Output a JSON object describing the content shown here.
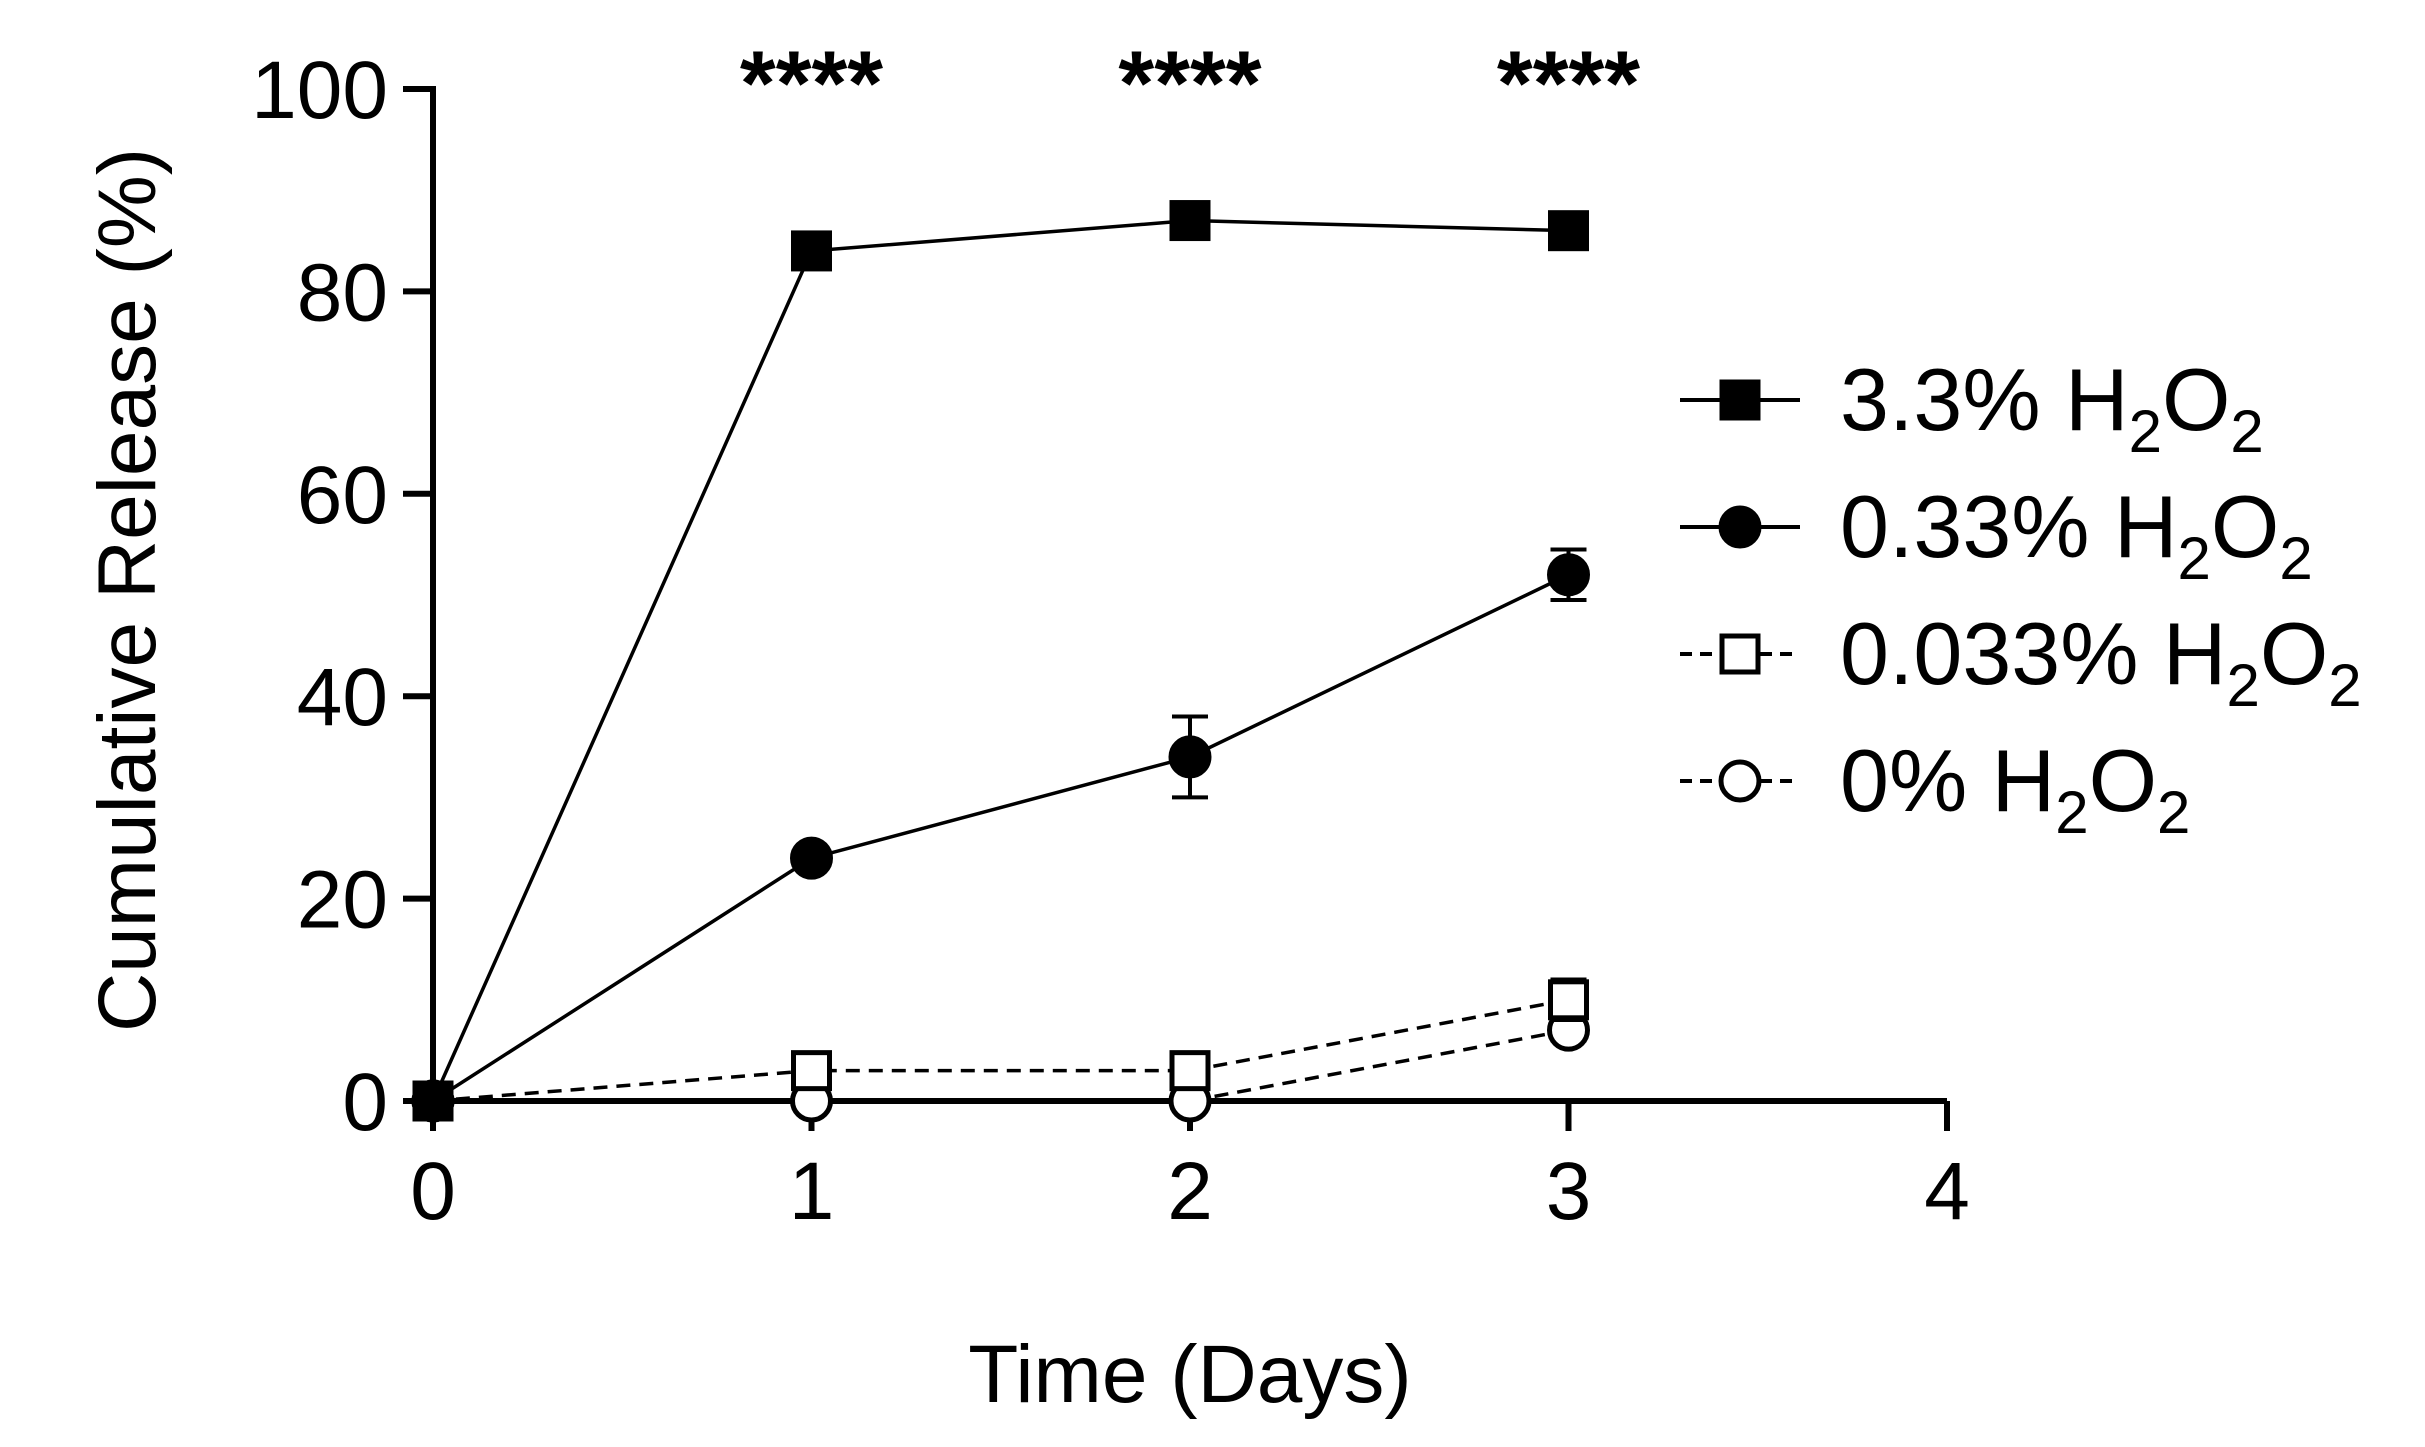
{
  "chart_data": {
    "type": "line",
    "xlabel": "Time (Days)",
    "ylabel": "Cumulative Release (%)",
    "xlim": [
      0,
      4
    ],
    "ylim": [
      0,
      100
    ],
    "xticks": [
      "0",
      "1",
      "2",
      "3",
      "4"
    ],
    "yticks": [
      "0",
      "20",
      "40",
      "60",
      "80",
      "100"
    ],
    "grid": false,
    "legend_position": "right",
    "significance": [
      {
        "x": 1,
        "label": "****"
      },
      {
        "x": 2,
        "label": "****"
      },
      {
        "x": 3,
        "label": "****"
      }
    ],
    "series": [
      {
        "name": "3.3% H2O2",
        "label_prefix": "3.3% ",
        "marker": "square-filled",
        "line": "solid",
        "x": [
          0,
          1,
          2,
          3
        ],
        "y": [
          0,
          84,
          87,
          86
        ],
        "err": [
          0,
          0,
          0,
          0
        ]
      },
      {
        "name": "0.33% H2O2",
        "label_prefix": "0.33% ",
        "marker": "circle-filled",
        "line": "solid",
        "x": [
          0,
          1,
          2,
          3
        ],
        "y": [
          0,
          24,
          34,
          52
        ],
        "err": [
          0,
          0,
          4,
          2.5
        ]
      },
      {
        "name": "0.033% H2O2",
        "label_prefix": "0.033% ",
        "marker": "square-open",
        "line": "dashed",
        "x": [
          0,
          1,
          2,
          3
        ],
        "y": [
          0,
          3,
          3,
          10
        ],
        "err": [
          0,
          0.8,
          0.5,
          2
        ]
      },
      {
        "name": "0% H2O2",
        "label_prefix": "0% ",
        "marker": "circle-open",
        "line": "dashed",
        "x": [
          0,
          1,
          2,
          3
        ],
        "y": [
          0,
          0,
          0,
          7
        ],
        "err": [
          0,
          0,
          0,
          1
        ]
      }
    ],
    "colors": {
      "ink": "#000000",
      "background": "#ffffff"
    }
  }
}
